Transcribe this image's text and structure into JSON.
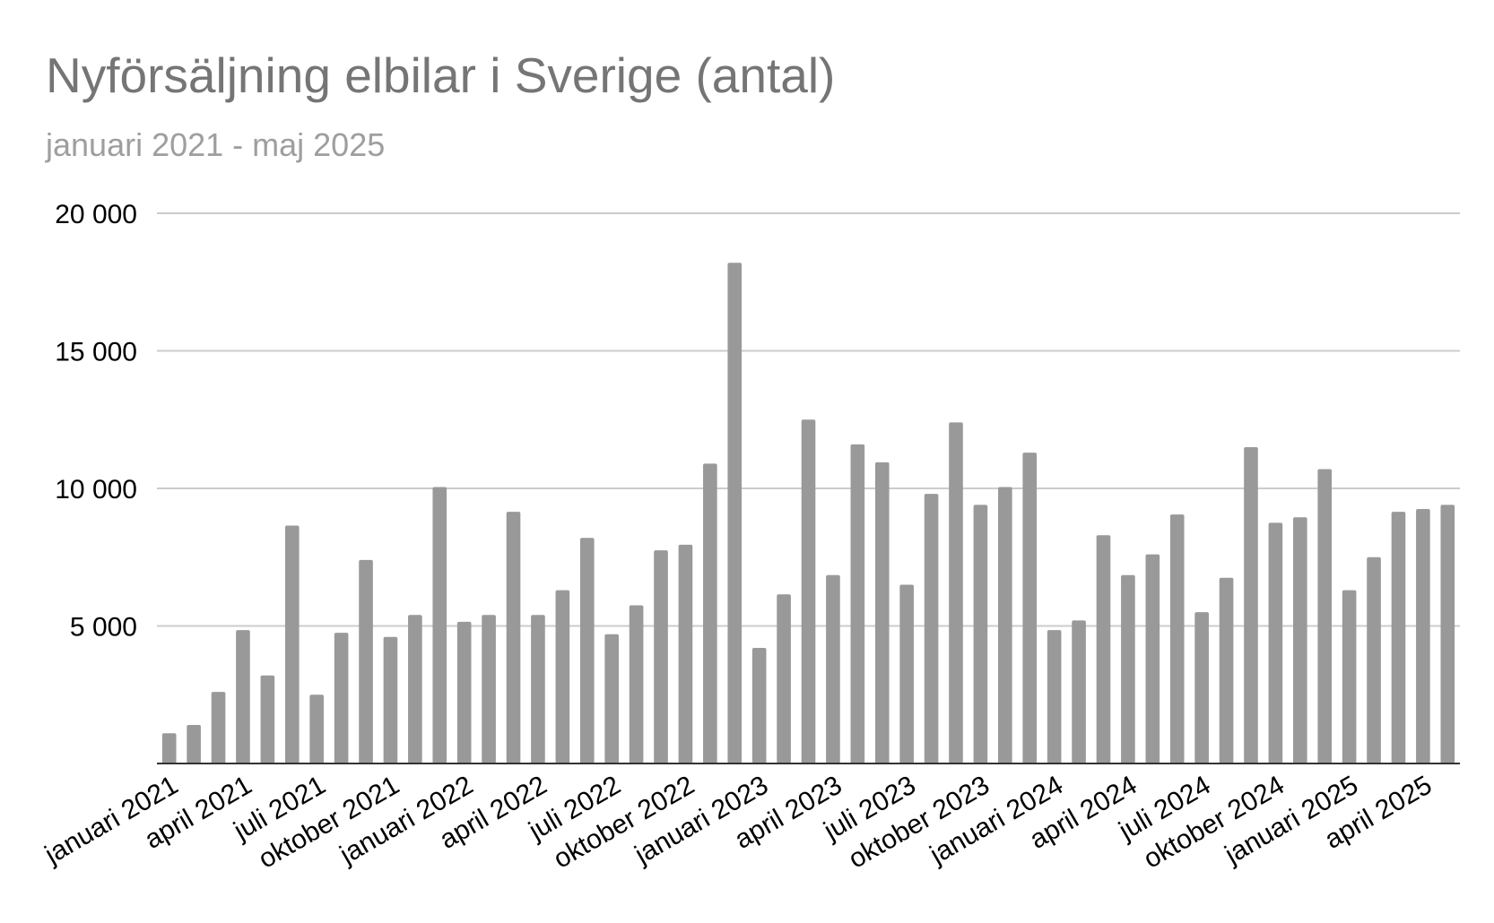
{
  "chart_data": {
    "type": "bar",
    "title": "Nyförsäljning elbilar i Sverige (antal)",
    "subtitle": "januari 2021 - maj 2025",
    "xlabel": "",
    "ylabel": "",
    "ylim": [
      0,
      20000
    ],
    "y_ticks": [
      5000,
      10000,
      15000,
      20000
    ],
    "y_tick_labels": [
      "5 000",
      "10 000",
      "15 000",
      "20 000"
    ],
    "grid": true,
    "legend": "none",
    "bar_color": "#999999",
    "categories": [
      "januari 2021",
      "februari 2021",
      "mars 2021",
      "april 2021",
      "maj 2021",
      "juni 2021",
      "juli 2021",
      "augusti 2021",
      "september 2021",
      "oktober 2021",
      "november 2021",
      "december 2021",
      "januari 2022",
      "februari 2022",
      "mars 2022",
      "april 2022",
      "maj 2022",
      "juni 2022",
      "juli 2022",
      "augusti 2022",
      "september 2022",
      "oktober 2022",
      "november 2022",
      "december 2022",
      "januari 2023",
      "februari 2023",
      "mars 2023",
      "april 2023",
      "maj 2023",
      "juni 2023",
      "juli 2023",
      "augusti 2023",
      "september 2023",
      "oktober 2023",
      "november 2023",
      "december 2023",
      "januari 2024",
      "februari 2024",
      "mars 2024",
      "april 2024",
      "maj 2024",
      "juni 2024",
      "juli 2024",
      "augusti 2024",
      "september 2024",
      "oktober 2024",
      "november 2024",
      "december 2024",
      "januari 2025",
      "februari 2025",
      "mars 2025",
      "april 2025",
      "maj 2025"
    ],
    "x_tick_labels": [
      "januari 2021",
      "april 2021",
      "juli 2021",
      "oktober 2021",
      "januari 2022",
      "april 2022",
      "juli 2022",
      "oktober 2022",
      "januari 2023",
      "april 2023",
      "juli 2023",
      "oktober 2023",
      "januari 2024",
      "april 2024",
      "juli 2024",
      "oktober 2024",
      "januari 2025",
      "april 2025"
    ],
    "series": [
      {
        "values": [
          1100,
          1400,
          2600,
          4850,
          3200,
          8650,
          2500,
          4750,
          7400,
          4600,
          5400,
          10050,
          5150,
          5400,
          9150,
          5400,
          6300,
          8200,
          4700,
          5750,
          7750,
          7950,
          10900,
          18200,
          4200,
          6150,
          12500,
          6850,
          11600,
          10950,
          6500,
          9800,
          12400,
          9400,
          10050,
          11300,
          4850,
          5200,
          8300,
          6850,
          7600,
          9050,
          5500,
          6750,
          11500,
          8750,
          8950,
          10700,
          6300,
          7500,
          9150,
          9250,
          9400
        ]
      }
    ]
  }
}
